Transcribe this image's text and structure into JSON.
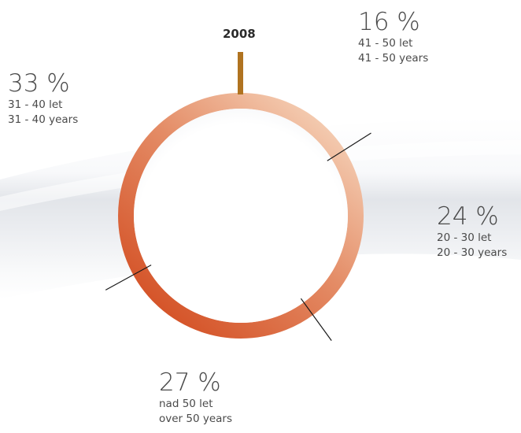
{
  "chart_data": {
    "type": "pie",
    "title": "2008",
    "style": "donut",
    "start_angle_deg": 0,
    "direction": "clockwise",
    "colors": {
      "start": "#f2c3a6",
      "end": "#d85628",
      "marker": "#b07320",
      "leader": "#1a1a1a"
    },
    "slices": [
      {
        "percent": "16 %",
        "value": 16,
        "label_cs": "41 - 50 let",
        "label_en": "41 - 50 years"
      },
      {
        "percent": "24 %",
        "value": 24,
        "label_cs": "20 - 30 let",
        "label_en": "20 - 30 years"
      },
      {
        "percent": "27 %",
        "value": 27,
        "label_cs": "nad 50 let",
        "label_en": "over 50 years"
      },
      {
        "percent": "33 %",
        "value": 33,
        "label_cs": "31 - 40 let",
        "label_en": "31 - 40 years"
      }
    ]
  }
}
